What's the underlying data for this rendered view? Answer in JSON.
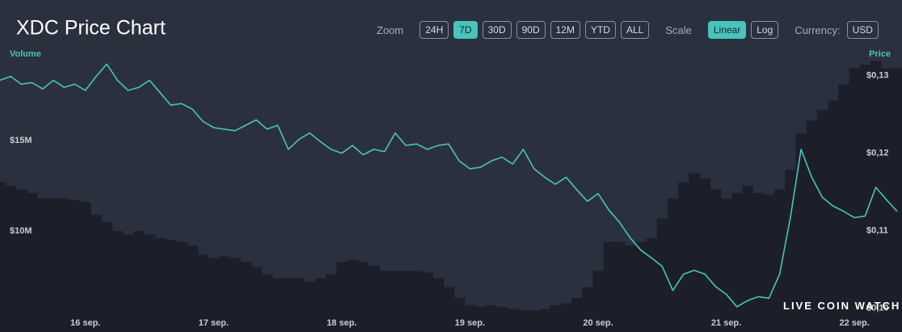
{
  "toolbar": {
    "zoom_label": "Zoom",
    "zoom_buttons": [
      "24H",
      "7D",
      "30D",
      "90D",
      "12M",
      "YTD",
      "ALL"
    ],
    "zoom_active": 1,
    "scale_label": "Scale",
    "scale_buttons": [
      "Linear",
      "Log"
    ],
    "scale_active": 0,
    "currency_label": "Currency:",
    "currency": "USD"
  },
  "watermark": "LIVE COIN WATCH",
  "chart_data": {
    "type": "line",
    "title": "XDC Price Chart",
    "ylabel": "Volume",
    "y2label": "Price",
    "categories": [
      null,
      null,
      null,
      null,
      null,
      null,
      null,
      null,
      "16 sep.",
      null,
      null,
      null,
      null,
      null,
      null,
      null,
      null,
      null,
      null,
      null,
      "17 sep.",
      null,
      null,
      null,
      null,
      null,
      null,
      null,
      null,
      null,
      null,
      null,
      "18 sep.",
      null,
      null,
      null,
      null,
      null,
      null,
      null,
      null,
      null,
      null,
      null,
      "19 sep.",
      null,
      null,
      null,
      null,
      null,
      null,
      null,
      null,
      null,
      null,
      null,
      "20 sep.",
      null,
      null,
      null,
      null,
      null,
      null,
      null,
      null,
      null,
      null,
      null,
      "21 sep.",
      null,
      null,
      null,
      null,
      null,
      null,
      null,
      null,
      null,
      null,
      null,
      "22 sep.",
      null,
      null,
      null,
      null
    ],
    "series": [
      {
        "type": "bar",
        "color": "#1c1f29",
        "values": [
          12700000,
          12500000,
          12300000,
          12100000,
          11800000,
          11800000,
          11800000,
          11700000,
          11600000,
          10900000,
          10500000,
          10000000,
          9800000,
          10000000,
          9800000,
          9600000,
          9500000,
          9400000,
          9200000,
          8700000,
          8500000,
          8600000,
          8500000,
          8300000,
          8000000,
          7600000,
          7400000,
          7400000,
          7400000,
          7200000,
          7400000,
          7600000,
          8300000,
          8400000,
          8300000,
          8100000,
          7800000,
          7800000,
          7800000,
          7800000,
          7700000,
          7400000,
          6900000,
          6300000,
          5900000,
          5800000,
          5900000,
          5800000,
          5700000,
          5600000,
          5600000,
          5700000,
          5900000,
          6000000,
          6300000,
          6900000,
          7800000,
          9400000,
          9400000,
          9200000,
          9400000,
          9600000,
          10700000,
          11800000,
          12700000,
          13200000,
          12900000,
          12300000,
          11800000,
          12100000,
          12500000,
          12100000,
          12000000,
          12300000,
          13400000,
          15400000,
          16100000,
          16700000,
          17200000,
          18100000,
          19000000,
          19200000,
          19400000,
          19000000,
          19000000
        ]
      },
      {
        "type": "line",
        "axis": "y2",
        "color": "#47c4bb",
        "values": [
          0.1294,
          0.1299,
          0.1289,
          0.1291,
          0.1283,
          0.1294,
          0.1285,
          0.1289,
          0.1281,
          0.1299,
          0.1315,
          0.1294,
          0.1281,
          0.1285,
          0.1294,
          0.1278,
          0.1262,
          0.1264,
          0.1257,
          0.1241,
          0.1233,
          0.1231,
          0.1229,
          0.1236,
          0.1243,
          0.1231,
          0.1236,
          0.1205,
          0.1218,
          0.1226,
          0.1215,
          0.1205,
          0.12,
          0.121,
          0.1198,
          0.1205,
          0.1202,
          0.1226,
          0.121,
          0.1212,
          0.1205,
          0.121,
          0.1212,
          0.119,
          0.118,
          0.1182,
          0.119,
          0.1195,
          0.1186,
          0.1205,
          0.118,
          0.1169,
          0.116,
          0.1169,
          0.1153,
          0.1138,
          0.1148,
          0.1127,
          0.1111,
          0.1091,
          0.1075,
          0.1065,
          0.1054,
          0.1023,
          0.1044,
          0.1049,
          0.1044,
          0.1028,
          0.1018,
          0.1002,
          0.101,
          0.1015,
          0.1013,
          0.1044,
          0.1117,
          0.1205,
          0.1169,
          0.1143,
          0.1132,
          0.1125,
          0.1117,
          0.1119,
          0.1156,
          0.114,
          0.1125
        ]
      }
    ],
    "ylim": [
      5000000,
      20000000
    ],
    "yticks": [
      {
        "value": 10000000,
        "label": "$10M"
      },
      {
        "value": 15000000,
        "label": "$15M"
      }
    ],
    "y2lim": [
      0.0983,
      0.1333
    ],
    "y2ticks": [
      {
        "value": 0.1,
        "label": "$0,10"
      },
      {
        "value": 0.11,
        "label": "$0,11"
      },
      {
        "value": 0.12,
        "label": "$0,12"
      },
      {
        "value": 0.13,
        "label": "$0,13"
      }
    ],
    "grid": false
  }
}
